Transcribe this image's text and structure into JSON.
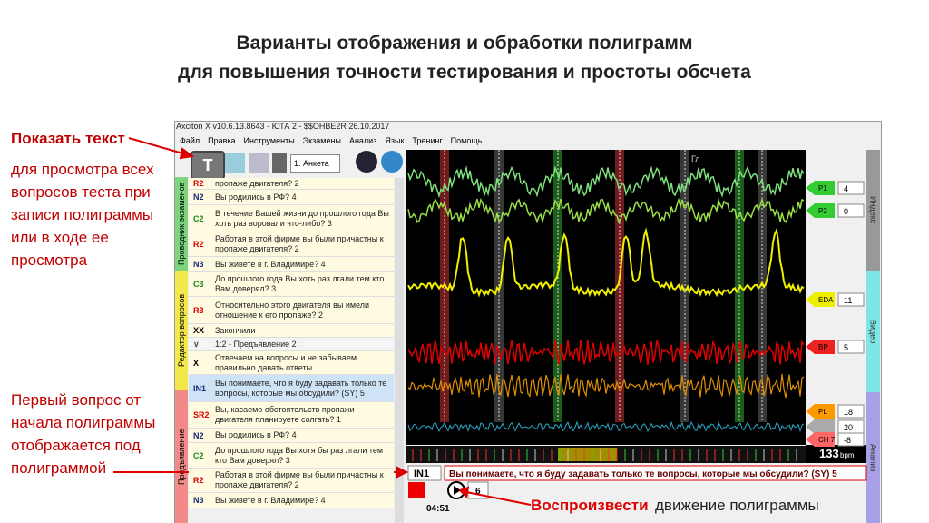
{
  "slide": {
    "title_lines": [
      "Варианты отображения и обработки полиграмм",
      "для повышения точности тестирования и простоты обсчета"
    ],
    "show_text_title": "Показать текст",
    "show_text_body": "для просмотра всех вопросов теста при записи полиграммы или в ходе ее просмотра",
    "first_question_note": "Первый вопрос от начала полиграммы отображается под полиграммой",
    "play_label": "Воспроизвести",
    "play_desc": "движение полиграммы"
  },
  "window": {
    "title": "Axciton X v10.6.13.8643 - ЮТА 2 - $$OHBE2R 26.10.2017",
    "menu": [
      "Файл",
      "Правка",
      "Инструменты",
      "Экзамены",
      "Анализ",
      "Язык",
      "Тренинг",
      "Помощь"
    ],
    "questionnaire": "1. Анкета",
    "left_tabs": [
      "Проводник экзаменов",
      "Редактор вопросов",
      "Предъявление"
    ],
    "right_tabs": [
      "Индекс",
      "Видео",
      "Анализ"
    ],
    "questions": [
      {
        "code": "R2",
        "text": "пропаже двигателя? 2"
      },
      {
        "code": "N2",
        "text": "Вы родились в РФ? 4"
      },
      {
        "code": "C2",
        "text": "В течение Вашей жизни до прошлого года Вы хоть раз воровали что-либо? 3"
      },
      {
        "code": "R2",
        "text": "Работая в этой фирме вы были причастны к пропаже двигателя? 2"
      },
      {
        "code": "N3",
        "text": "Вы живете в г. Владимире? 4"
      },
      {
        "code": "C3",
        "text": "До прошлого года Вы хоть раз лгали тем кто Вам доверял? 3"
      },
      {
        "code": "R3",
        "text": "Относительно этого двигателя вы имели отношение к его пропаже? 2"
      },
      {
        "code": "XX",
        "text": "Закончили"
      },
      {
        "code": "∨",
        "text": "1:2 - Предъявление 2"
      },
      {
        "code": "X",
        "text": "Отвечаем на вопросы и не забываем правильно давать ответы"
      },
      {
        "code": "IN1",
        "text": "Вы понимаете, что я буду задавать только те вопросы, которые мы обсудили? (SY) 5"
      },
      {
        "code": "SR2",
        "text": "Вы, касаемо обстоятельств пропажи двигателя планируете солгать? 1"
      },
      {
        "code": "N2",
        "text": "Вы родились в РФ? 4"
      },
      {
        "code": "C2",
        "text": "До прошлого года Вы хотя бы раз лгали тем кто Вам доверял? 3"
      },
      {
        "code": "R2",
        "text": "Работая в этой фирме вы были причастны к пропаже двигателя? 2"
      },
      {
        "code": "N3",
        "text": "Вы живете в г. Владимире? 4"
      }
    ],
    "channels": [
      {
        "name": "P1",
        "value": "4"
      },
      {
        "name": "P2",
        "value": "0"
      },
      {
        "name": "EDA",
        "value": "11"
      },
      {
        "name": "BP",
        "value": "5"
      },
      {
        "name": "PL",
        "value": "18"
      },
      {
        "name": "",
        "value": "20"
      },
      {
        "name": "CH 7",
        "value": "-8"
      }
    ],
    "chart_marker": "Гл",
    "heart_rate": "133",
    "heart_unit": "bpm",
    "current_code": "IN1",
    "current_text": "Вы понимаете, что я буду задавать только те вопросы, которые мы обсудили? (SY) 5",
    "speed": "6",
    "time": "04:51"
  }
}
